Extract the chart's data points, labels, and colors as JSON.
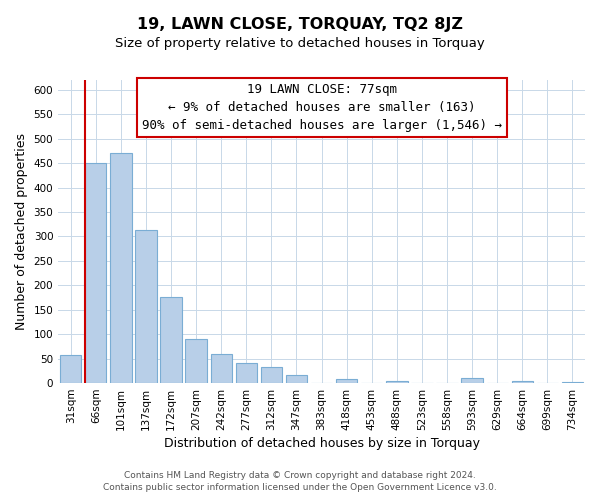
{
  "title": "19, LAWN CLOSE, TORQUAY, TQ2 8JZ",
  "subtitle": "Size of property relative to detached houses in Torquay",
  "xlabel": "Distribution of detached houses by size in Torquay",
  "ylabel": "Number of detached properties",
  "bar_labels": [
    "31sqm",
    "66sqm",
    "101sqm",
    "137sqm",
    "172sqm",
    "207sqm",
    "242sqm",
    "277sqm",
    "312sqm",
    "347sqm",
    "383sqm",
    "418sqm",
    "453sqm",
    "488sqm",
    "523sqm",
    "558sqm",
    "593sqm",
    "629sqm",
    "664sqm",
    "699sqm",
    "734sqm"
  ],
  "bar_values": [
    57,
    450,
    470,
    313,
    176,
    90,
    60,
    42,
    33,
    17,
    0,
    8,
    1,
    5,
    1,
    1,
    10,
    0,
    5,
    0,
    2
  ],
  "bar_color": "#b8cfe8",
  "bar_edge_color": "#7aadd4",
  "vline_color": "#cc0000",
  "annotation_title": "19 LAWN CLOSE: 77sqm",
  "annotation_line1": "← 9% of detached houses are smaller (163)",
  "annotation_line2": "90% of semi-detached houses are larger (1,546) →",
  "annotation_box_color": "#ffffff",
  "annotation_box_edge": "#cc0000",
  "ylim": [
    0,
    620
  ],
  "yticks": [
    0,
    50,
    100,
    150,
    200,
    250,
    300,
    350,
    400,
    450,
    500,
    550,
    600
  ],
  "footer_line1": "Contains HM Land Registry data © Crown copyright and database right 2024.",
  "footer_line2": "Contains public sector information licensed under the Open Government Licence v3.0.",
  "bg_color": "#ffffff",
  "grid_color": "#c8d8e8",
  "title_fontsize": 11.5,
  "subtitle_fontsize": 9.5,
  "axis_label_fontsize": 9,
  "tick_fontsize": 7.5,
  "annotation_fontsize": 9,
  "footer_fontsize": 6.5
}
